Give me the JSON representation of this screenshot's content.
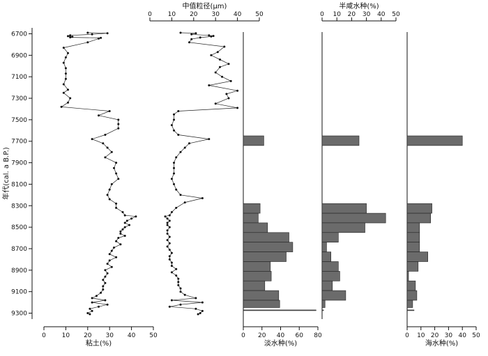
{
  "chart_data": {
    "type": "line",
    "y_axis": {
      "label": "年代(cal. a B.P.)",
      "ticks": [
        6700,
        6900,
        7100,
        7300,
        7500,
        7700,
        7900,
        8100,
        8300,
        8500,
        8700,
        8900,
        9100,
        9300
      ],
      "range": [
        6680,
        9320
      ],
      "reversed": true
    },
    "panels": [
      {
        "id": "clay",
        "type": "line",
        "xlabel": "粘土(%)",
        "xlabel_pos": "bottom",
        "xlim": [
          0,
          50
        ],
        "xticks": [
          0,
          10,
          20,
          30,
          40,
          50
        ],
        "series": [
          {
            "points": [
              [
                6690,
                20
              ],
              [
                6695,
                29
              ],
              [
                6705,
                22
              ],
              [
                6715,
                12
              ],
              [
                6722,
                11
              ],
              [
                6728,
                13
              ],
              [
                6733,
                12
              ],
              [
                6738,
                26
              ],
              [
                6745,
                25
              ],
              [
                6780,
                20
              ],
              [
                6830,
                9
              ],
              [
                6880,
                11
              ],
              [
                6920,
                10
              ],
              [
                6970,
                9
              ],
              [
                7020,
                10
              ],
              [
                7070,
                10
              ],
              [
                7120,
                10
              ],
              [
                7170,
                9
              ],
              [
                7220,
                11
              ],
              [
                7250,
                9
              ],
              [
                7300,
                12
              ],
              [
                7340,
                11
              ],
              [
                7380,
                8
              ],
              [
                7420,
                30
              ],
              [
                7460,
                25
              ],
              [
                7500,
                34
              ],
              [
                7540,
                34
              ],
              [
                7580,
                34
              ],
              [
                7640,
                28
              ],
              [
                7680,
                22
              ],
              [
                7720,
                27
              ],
              [
                7760,
                29
              ],
              [
                7800,
                31
              ],
              [
                7850,
                28
              ],
              [
                7900,
                33
              ],
              [
                7950,
                32
              ],
              [
                8000,
                33
              ],
              [
                8050,
                34
              ],
              [
                8100,
                31
              ],
              [
                8150,
                30
              ],
              [
                8200,
                29
              ],
              [
                8240,
                30
              ],
              [
                8280,
                33
              ],
              [
                8320,
                33
              ],
              [
                8360,
                36
              ],
              [
                8390,
                37
              ],
              [
                8400,
                42
              ],
              [
                8420,
                40
              ],
              [
                8440,
                38
              ],
              [
                8460,
                37
              ],
              [
                8480,
                39
              ],
              [
                8500,
                37
              ],
              [
                8520,
                36
              ],
              [
                8540,
                35
              ],
              [
                8560,
                35
              ],
              [
                8580,
                37
              ],
              [
                8600,
                34
              ],
              [
                8630,
                33
              ],
              [
                8660,
                35
              ],
              [
                8690,
                32
              ],
              [
                8720,
                31
              ],
              [
                8750,
                30
              ],
              [
                8780,
                33
              ],
              [
                8810,
                30
              ],
              [
                8840,
                29
              ],
              [
                8870,
                31
              ],
              [
                8900,
                28
              ],
              [
                8930,
                29
              ],
              [
                8960,
                28
              ],
              [
                8990,
                27
              ],
              [
                9020,
                28
              ],
              [
                9050,
                27
              ],
              [
                9080,
                27
              ],
              [
                9110,
                26
              ],
              [
                9140,
                24
              ],
              [
                9160,
                22
              ],
              [
                9180,
                28
              ],
              [
                9200,
                22
              ],
              [
                9220,
                29
              ],
              [
                9240,
                25
              ],
              [
                9260,
                21
              ],
              [
                9280,
                22
              ],
              [
                9300,
                20
              ],
              [
                9310,
                21
              ]
            ]
          }
        ]
      },
      {
        "id": "median",
        "type": "line",
        "xlabel": "中值粒径(μm)",
        "xlabel_pos": "top",
        "xlim": [
          0,
          50
        ],
        "xticks": [
          0,
          10,
          20,
          30,
          40,
          50
        ],
        "series": [
          {
            "points": [
              [
                6690,
                14
              ],
              [
                6695,
                21
              ],
              [
                6705,
                19
              ],
              [
                6715,
                27
              ],
              [
                6720,
                29
              ],
              [
                6725,
                28
              ],
              [
                6735,
                23
              ],
              [
                6750,
                19
              ],
              [
                6780,
                18
              ],
              [
                6820,
                34
              ],
              [
                6870,
                31
              ],
              [
                6900,
                28
              ],
              [
                6940,
                32
              ],
              [
                6980,
                36
              ],
              [
                7010,
                32
              ],
              [
                7060,
                30
              ],
              [
                7100,
                33
              ],
              [
                7140,
                37
              ],
              [
                7180,
                27
              ],
              [
                7230,
                40
              ],
              [
                7260,
                35
              ],
              [
                7300,
                36
              ],
              [
                7350,
                30
              ],
              [
                7390,
                40
              ],
              [
                7420,
                13
              ],
              [
                7450,
                11
              ],
              [
                7500,
                11
              ],
              [
                7550,
                10
              ],
              [
                7600,
                11
              ],
              [
                7640,
                13
              ],
              [
                7680,
                27
              ],
              [
                7720,
                18
              ],
              [
                7760,
                16
              ],
              [
                7800,
                14
              ],
              [
                7850,
                12
              ],
              [
                7900,
                11
              ],
              [
                7950,
                11
              ],
              [
                8000,
                11
              ],
              [
                8050,
                10
              ],
              [
                8100,
                11
              ],
              [
                8150,
                12
              ],
              [
                8200,
                14
              ],
              [
                8230,
                24
              ],
              [
                8270,
                16
              ],
              [
                8320,
                12
              ],
              [
                8360,
                10
              ],
              [
                8390,
                9
              ],
              [
                8400,
                7
              ],
              [
                8420,
                8
              ],
              [
                8440,
                9
              ],
              [
                8460,
                8
              ],
              [
                8480,
                8
              ],
              [
                8500,
                9
              ],
              [
                8530,
                8
              ],
              [
                8560,
                8
              ],
              [
                8590,
                9
              ],
              [
                8620,
                8
              ],
              [
                8650,
                9
              ],
              [
                8680,
                8
              ],
              [
                8710,
                9
              ],
              [
                8740,
                10
              ],
              [
                8770,
                9
              ],
              [
                8800,
                9
              ],
              [
                8830,
                10
              ],
              [
                8860,
                10
              ],
              [
                8890,
                12
              ],
              [
                8920,
                10
              ],
              [
                8950,
                12
              ],
              [
                8980,
                13
              ],
              [
                9010,
                13
              ],
              [
                9040,
                13
              ],
              [
                9070,
                14
              ],
              [
                9100,
                14
              ],
              [
                9130,
                16
              ],
              [
                9160,
                21
              ],
              [
                9180,
                10
              ],
              [
                9200,
                24
              ],
              [
                9220,
                14
              ],
              [
                9240,
                9
              ],
              [
                9260,
                21
              ],
              [
                9280,
                24
              ],
              [
                9300,
                23
              ],
              [
                9310,
                22
              ]
            ]
          }
        ]
      },
      {
        "id": "freshwater",
        "type": "bar",
        "xlabel": "淡水种(%)",
        "xlabel_pos": "bottom",
        "xlim": [
          0,
          80
        ],
        "xticks": [
          0,
          20,
          40,
          60,
          80
        ],
        "bars": [
          {
            "from": 7650,
            "to": 7740,
            "value": 22
          },
          {
            "from": 8280,
            "to": 8370,
            "value": 18
          },
          {
            "from": 8370,
            "to": 8460,
            "value": 16
          },
          {
            "from": 8460,
            "to": 8550,
            "value": 26
          },
          {
            "from": 8550,
            "to": 8640,
            "value": 49
          },
          {
            "from": 8640,
            "to": 8730,
            "value": 53
          },
          {
            "from": 8730,
            "to": 8820,
            "value": 46
          },
          {
            "from": 8820,
            "to": 8910,
            "value": 29
          },
          {
            "from": 8910,
            "to": 9000,
            "value": 30
          },
          {
            "from": 9000,
            "to": 9090,
            "value": 23
          },
          {
            "from": 9090,
            "to": 9180,
            "value": 38
          },
          {
            "from": 9180,
            "to": 9270,
            "value": 39
          },
          {
            "from": 9270,
            "to": 9360,
            "value": 78
          }
        ]
      },
      {
        "id": "brackish",
        "type": "bar",
        "xlabel": "半咸水种(%)",
        "xlabel_pos": "top",
        "xlim": [
          0,
          50
        ],
        "xticks": [
          0,
          10,
          20,
          30,
          40,
          50
        ],
        "bars": [
          {
            "from": 7650,
            "to": 7740,
            "value": 25
          },
          {
            "from": 8280,
            "to": 8370,
            "value": 30
          },
          {
            "from": 8370,
            "to": 8460,
            "value": 43
          },
          {
            "from": 8460,
            "to": 8550,
            "value": 29
          },
          {
            "from": 8550,
            "to": 8640,
            "value": 11
          },
          {
            "from": 8640,
            "to": 8730,
            "value": 3
          },
          {
            "from": 8730,
            "to": 8820,
            "value": 6
          },
          {
            "from": 8820,
            "to": 8910,
            "value": 11
          },
          {
            "from": 8910,
            "to": 9000,
            "value": 12
          },
          {
            "from": 9000,
            "to": 9090,
            "value": 7
          },
          {
            "from": 9090,
            "to": 9180,
            "value": 16
          },
          {
            "from": 9180,
            "to": 9270,
            "value": 2
          },
          {
            "from": 9270,
            "to": 9360,
            "value": 1
          }
        ]
      },
      {
        "id": "marine",
        "type": "bar",
        "xlabel": "海水种(%)",
        "xlabel_pos": "bottom",
        "xlim": [
          0,
          50
        ],
        "xticks": [
          0,
          10,
          20,
          30,
          40,
          50
        ],
        "bars": [
          {
            "from": 7650,
            "to": 7740,
            "value": 40
          },
          {
            "from": 8280,
            "to": 8370,
            "value": 18
          },
          {
            "from": 8370,
            "to": 8460,
            "value": 17
          },
          {
            "from": 8460,
            "to": 8550,
            "value": 9
          },
          {
            "from": 8550,
            "to": 8640,
            "value": 9
          },
          {
            "from": 8640,
            "to": 8730,
            "value": 9
          },
          {
            "from": 8730,
            "to": 8820,
            "value": 15
          },
          {
            "from": 8820,
            "to": 8910,
            "value": 8
          },
          {
            "from": 8910,
            "to": 9000,
            "value": 1
          },
          {
            "from": 9000,
            "to": 9090,
            "value": 6
          },
          {
            "from": 9090,
            "to": 9180,
            "value": 7
          },
          {
            "from": 9180,
            "to": 9270,
            "value": 4
          },
          {
            "from": 9270,
            "to": 9360,
            "value": 5
          }
        ]
      }
    ]
  }
}
